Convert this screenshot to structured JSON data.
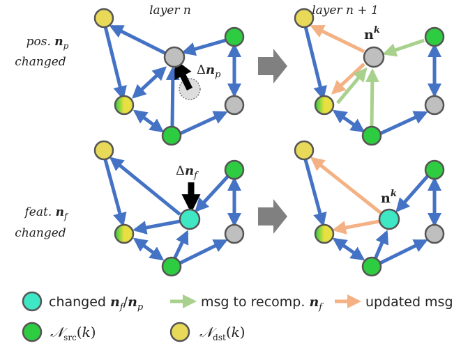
{
  "headers": {
    "left": "layer n",
    "right": "layer n + 1"
  },
  "row_labels": {
    "top": [
      "pos. n_p",
      "changed"
    ],
    "bottom": [
      "feat. n_f",
      "changed"
    ]
  },
  "annotations": {
    "delta_p": "Δn_p",
    "delta_f": "Δn_f",
    "node_k_top": "n^k",
    "node_k_bottom": "n^k"
  },
  "legend": {
    "changed": "changed n_f / n_p",
    "msg_recomp": "msg to recomp. n_f",
    "updated": "updated msg",
    "src": "N_src(k)",
    "dst": "N_dst(k)"
  },
  "colors": {
    "edge_blue": "#4472C4",
    "edge_green": "#A9D18E",
    "edge_orange": "#F4B183",
    "node_green": "#2ECC40",
    "node_yellow": "#E8D959",
    "node_gray": "#BFBFBF",
    "node_cyan": "#3EE8C5",
    "outline": "#555555"
  }
}
